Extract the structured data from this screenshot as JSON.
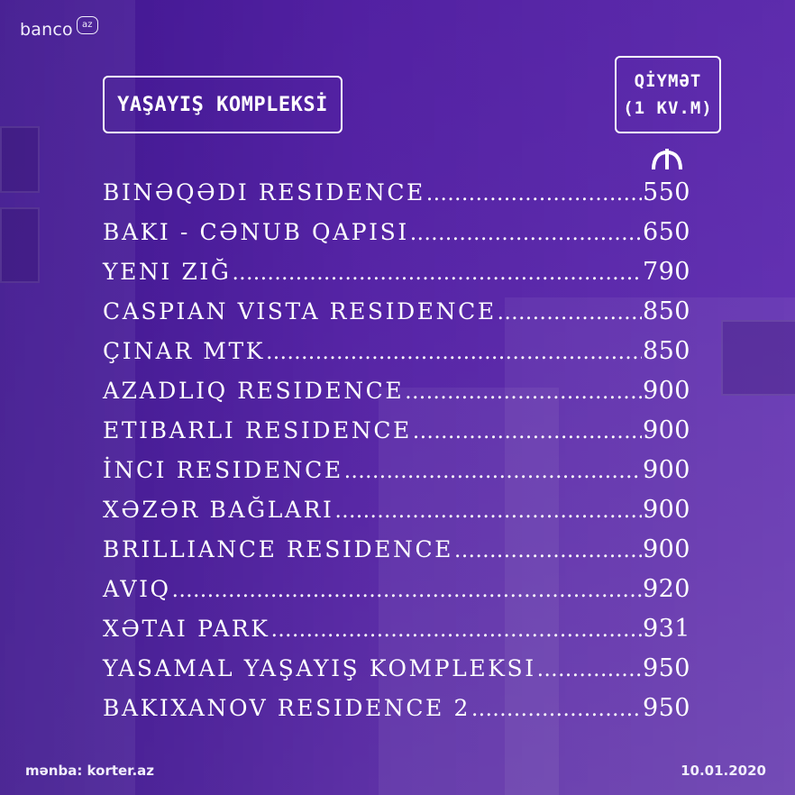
{
  "logo": {
    "text": "banco",
    "badge": "az"
  },
  "header": {
    "left_title": "YAŞAYIŞ KOMPLEKSİ",
    "right_line1": "QİYMƏT",
    "right_line2": "(1 KV.M)",
    "currency_icon": "manat-icon"
  },
  "rows": [
    {
      "name": "Binəqədi Residence",
      "price": "550"
    },
    {
      "name": "Bakı - Cənub Qapısı",
      "price": "650"
    },
    {
      "name": "Yeni Ziğ",
      "price": "790"
    },
    {
      "name": "Caspian Vista Residence",
      "price": "850"
    },
    {
      "name": "Çinar MTK",
      "price": "850"
    },
    {
      "name": "Azadlıq Residence",
      "price": "900"
    },
    {
      "name": "Etibarlı Residence",
      "price": "900"
    },
    {
      "name": "İnci Residence",
      "price": "900"
    },
    {
      "name": "Xəzər Bağları",
      "price": "900"
    },
    {
      "name": "Brilliance Residence",
      "price": "900"
    },
    {
      "name": "Aviq",
      "price": "920"
    },
    {
      "name": "Xətai Park",
      "price": "931"
    },
    {
      "name": "Yasamal Yaşayış Kompleksi",
      "price": "950"
    },
    {
      "name": "Bakıxanov Residence 2",
      "price": "950"
    }
  ],
  "footer": {
    "source": "mənba: korter.az",
    "date": "10.01.2020"
  },
  "colors": {
    "background": "#5a2aa8",
    "text": "#ffffff"
  }
}
